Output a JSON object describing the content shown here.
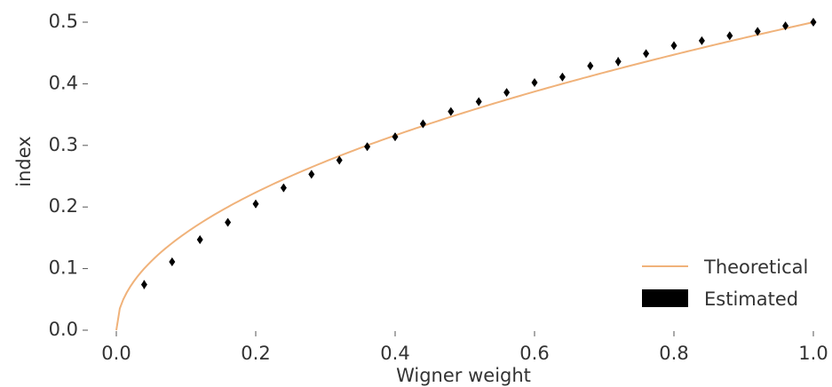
{
  "chart_data": {
    "type": "line",
    "xlabel": "Wigner weight",
    "ylabel": "index",
    "xlim": [
      0.0,
      1.0
    ],
    "ylim": [
      0.0,
      0.5
    ],
    "x_ticks": [
      "0.0",
      "0.2",
      "0.4",
      "0.6",
      "0.8",
      "1.0"
    ],
    "y_ticks": [
      "0.0",
      "0.1",
      "0.2",
      "0.3",
      "0.4",
      "0.5"
    ],
    "legend": {
      "position": "lower-right"
    },
    "series": [
      {
        "name": "Theoretical",
        "kind": "line",
        "color": "#f0b27a",
        "function": "0.5*sqrt(x)"
      },
      {
        "name": "Estimated",
        "kind": "errorbar",
        "color": "#000000",
        "points": [
          {
            "x": 0.04,
            "y": 0.074,
            "err": 0.007
          },
          {
            "x": 0.08,
            "y": 0.111,
            "err": 0.006
          },
          {
            "x": 0.12,
            "y": 0.147,
            "err": 0.006
          },
          {
            "x": 0.16,
            "y": 0.175,
            "err": 0.006
          },
          {
            "x": 0.2,
            "y": 0.205,
            "err": 0.006
          },
          {
            "x": 0.24,
            "y": 0.231,
            "err": 0.006
          },
          {
            "x": 0.28,
            "y": 0.253,
            "err": 0.006
          },
          {
            "x": 0.32,
            "y": 0.276,
            "err": 0.006
          },
          {
            "x": 0.36,
            "y": 0.298,
            "err": 0.006
          },
          {
            "x": 0.4,
            "y": 0.314,
            "err": 0.006
          },
          {
            "x": 0.44,
            "y": 0.335,
            "err": 0.005
          },
          {
            "x": 0.48,
            "y": 0.355,
            "err": 0.005
          },
          {
            "x": 0.52,
            "y": 0.371,
            "err": 0.006
          },
          {
            "x": 0.56,
            "y": 0.386,
            "err": 0.005
          },
          {
            "x": 0.6,
            "y": 0.402,
            "err": 0.005
          },
          {
            "x": 0.64,
            "y": 0.411,
            "err": 0.005
          },
          {
            "x": 0.68,
            "y": 0.429,
            "err": 0.005
          },
          {
            "x": 0.72,
            "y": 0.436,
            "err": 0.007
          },
          {
            "x": 0.76,
            "y": 0.449,
            "err": 0.005
          },
          {
            "x": 0.8,
            "y": 0.462,
            "err": 0.005
          },
          {
            "x": 0.84,
            "y": 0.47,
            "err": 0.004
          },
          {
            "x": 0.88,
            "y": 0.478,
            "err": 0.005
          },
          {
            "x": 0.92,
            "y": 0.485,
            "err": 0.006
          },
          {
            "x": 0.96,
            "y": 0.494,
            "err": 0.004
          },
          {
            "x": 1.0,
            "y": 0.5,
            "err": 0.003
          }
        ]
      }
    ]
  }
}
